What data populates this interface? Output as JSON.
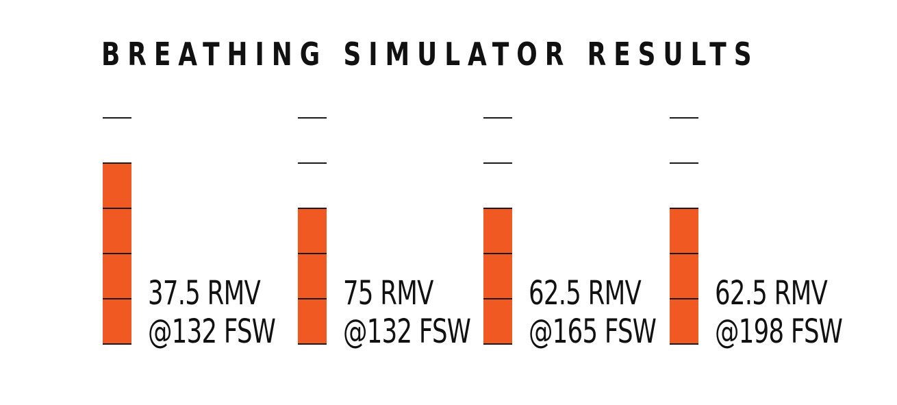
{
  "chart_data": {
    "type": "bar",
    "title": "BREATHING SIMULATOR RESULTS",
    "categories": [
      "37.5 RMV @132 FSW",
      "75 RMV @132 FSW",
      "62.5 RMV @165 FSW",
      "62.5 RMV @198 FSW"
    ],
    "labels": [
      [
        "37.5 RMV",
        "@132 FSW"
      ],
      [
        "75 RMV",
        "@132 FSW"
      ],
      [
        "62.5 RMV",
        "@165 FSW"
      ],
      [
        "62.5 RMV",
        "@198 FSW"
      ]
    ],
    "values": [
      4,
      3,
      3,
      3
    ],
    "ylim": [
      0,
      5
    ],
    "grid": false,
    "xlabel": "",
    "ylabel": "",
    "colors": {
      "fill": "#f05a22",
      "line": "#1a1a1a",
      "text": "#111111"
    }
  }
}
